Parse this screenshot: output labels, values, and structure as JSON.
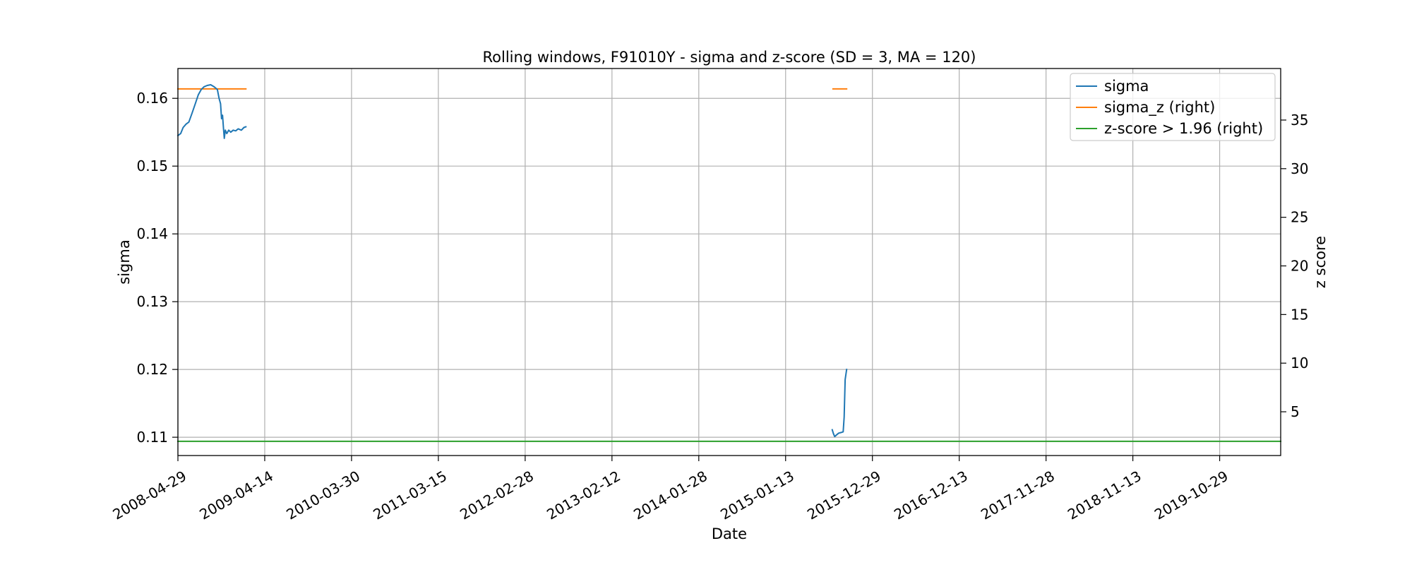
{
  "chart_data": {
    "type": "line",
    "title": "Rolling windows, F91010Y - sigma and z-score (SD = 3, MA = 120)",
    "xlabel": "Date",
    "ylabel_left": "sigma",
    "ylabel_right": "z score",
    "x_range": [
      "2008-04-29",
      "2020-07-01"
    ],
    "x_ticks": [
      "2008-04-29",
      "2009-04-14",
      "2010-03-30",
      "2011-03-15",
      "2012-02-28",
      "2013-02-12",
      "2014-01-28",
      "2015-01-13",
      "2015-12-29",
      "2016-12-13",
      "2017-11-28",
      "2018-11-13",
      "2019-10-29"
    ],
    "ylim_left": [
      0.1073,
      0.1644
    ],
    "ylim_right": [
      0.5,
      40.3
    ],
    "y_ticks_left": [
      "0.11",
      "0.12",
      "0.13",
      "0.14",
      "0.15",
      "0.16"
    ],
    "y_ticks_left_values": [
      0.11,
      0.12,
      0.13,
      0.14,
      0.15,
      0.16
    ],
    "y_ticks_right": [
      "5",
      "10",
      "15",
      "20",
      "25",
      "30",
      "35"
    ],
    "y_ticks_right_values": [
      5,
      10,
      15,
      20,
      25,
      30,
      35
    ],
    "grid": true,
    "legend_position": "top-right",
    "series": [
      {
        "name": "sigma",
        "axis": "left",
        "color": "#1f77b4",
        "segments": [
          [
            [
              "2008-04-29",
              0.1545
            ],
            [
              "2008-05-10",
              0.1548
            ],
            [
              "2008-05-20",
              0.1557
            ],
            [
              "2008-06-01",
              0.1562
            ],
            [
              "2008-06-12",
              0.1565
            ],
            [
              "2008-06-25",
              0.1578
            ],
            [
              "2008-07-08",
              0.1592
            ],
            [
              "2008-07-20",
              0.1605
            ],
            [
              "2008-08-01",
              0.1613
            ],
            [
              "2008-08-12",
              0.1617
            ],
            [
              "2008-08-25",
              0.1619
            ],
            [
              "2008-09-08",
              0.162
            ],
            [
              "2008-09-22",
              0.1617
            ],
            [
              "2008-10-05",
              0.1613
            ],
            [
              "2008-10-12",
              0.16
            ],
            [
              "2008-10-18",
              0.1592
            ],
            [
              "2008-10-22",
              0.157
            ],
            [
              "2008-10-26",
              0.1575
            ],
            [
              "2008-10-30",
              0.1555
            ],
            [
              "2008-11-02",
              0.1541
            ],
            [
              "2008-11-06",
              0.1553
            ],
            [
              "2008-11-12",
              0.1548
            ],
            [
              "2008-11-20",
              0.1553
            ],
            [
              "2008-11-28",
              0.155
            ],
            [
              "2008-12-08",
              0.1553
            ],
            [
              "2008-12-18",
              0.1552
            ],
            [
              "2008-12-28",
              0.1555
            ],
            [
              "2009-01-10",
              0.1553
            ],
            [
              "2009-01-20",
              0.1557
            ],
            [
              "2009-01-28",
              0.1558
            ]
          ],
          [
            [
              "2015-07-20",
              0.1111
            ],
            [
              "2015-07-25",
              0.1105
            ],
            [
              "2015-07-30",
              0.1101
            ],
            [
              "2015-08-05",
              0.1103
            ],
            [
              "2015-08-15",
              0.1106
            ],
            [
              "2015-08-25",
              0.1107
            ],
            [
              "2015-09-02",
              0.1108
            ],
            [
              "2015-09-06",
              0.113
            ],
            [
              "2015-09-10",
              0.1185
            ],
            [
              "2015-09-16",
              0.12
            ]
          ]
        ]
      },
      {
        "name": "sigma_z (right)",
        "axis": "right",
        "color": "#ff7f0e",
        "segments": [
          [
            [
              "2008-04-29",
              38.2
            ],
            [
              "2009-01-28",
              38.2
            ]
          ],
          [
            [
              "2015-07-23",
              38.2
            ],
            [
              "2015-09-16",
              38.2
            ]
          ]
        ]
      },
      {
        "name": "z-score > 1.96 (right)",
        "axis": "right",
        "color": "#2ca02c",
        "segments": [
          [
            [
              "2008-04-29",
              1.96
            ],
            [
              "2020-07-01",
              1.96
            ]
          ]
        ]
      }
    ]
  }
}
